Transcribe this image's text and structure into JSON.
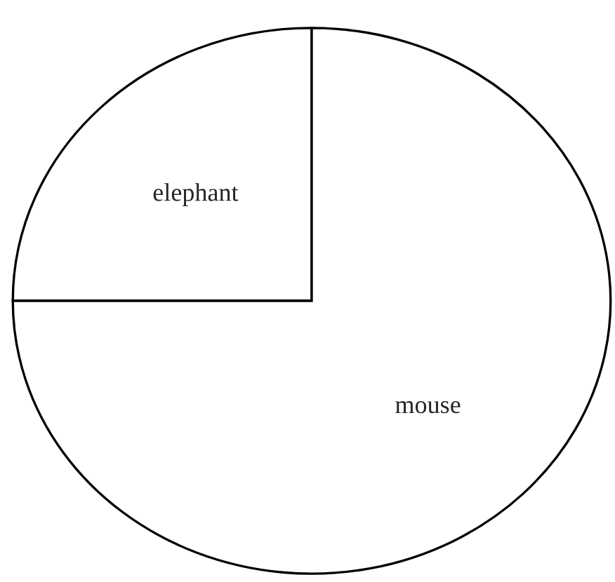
{
  "chart_data": {
    "type": "pie",
    "categories": [
      "elephant",
      "mouse"
    ],
    "values": [
      25,
      75
    ],
    "colors": [
      "#ffffff",
      "#ffffff"
    ]
  }
}
